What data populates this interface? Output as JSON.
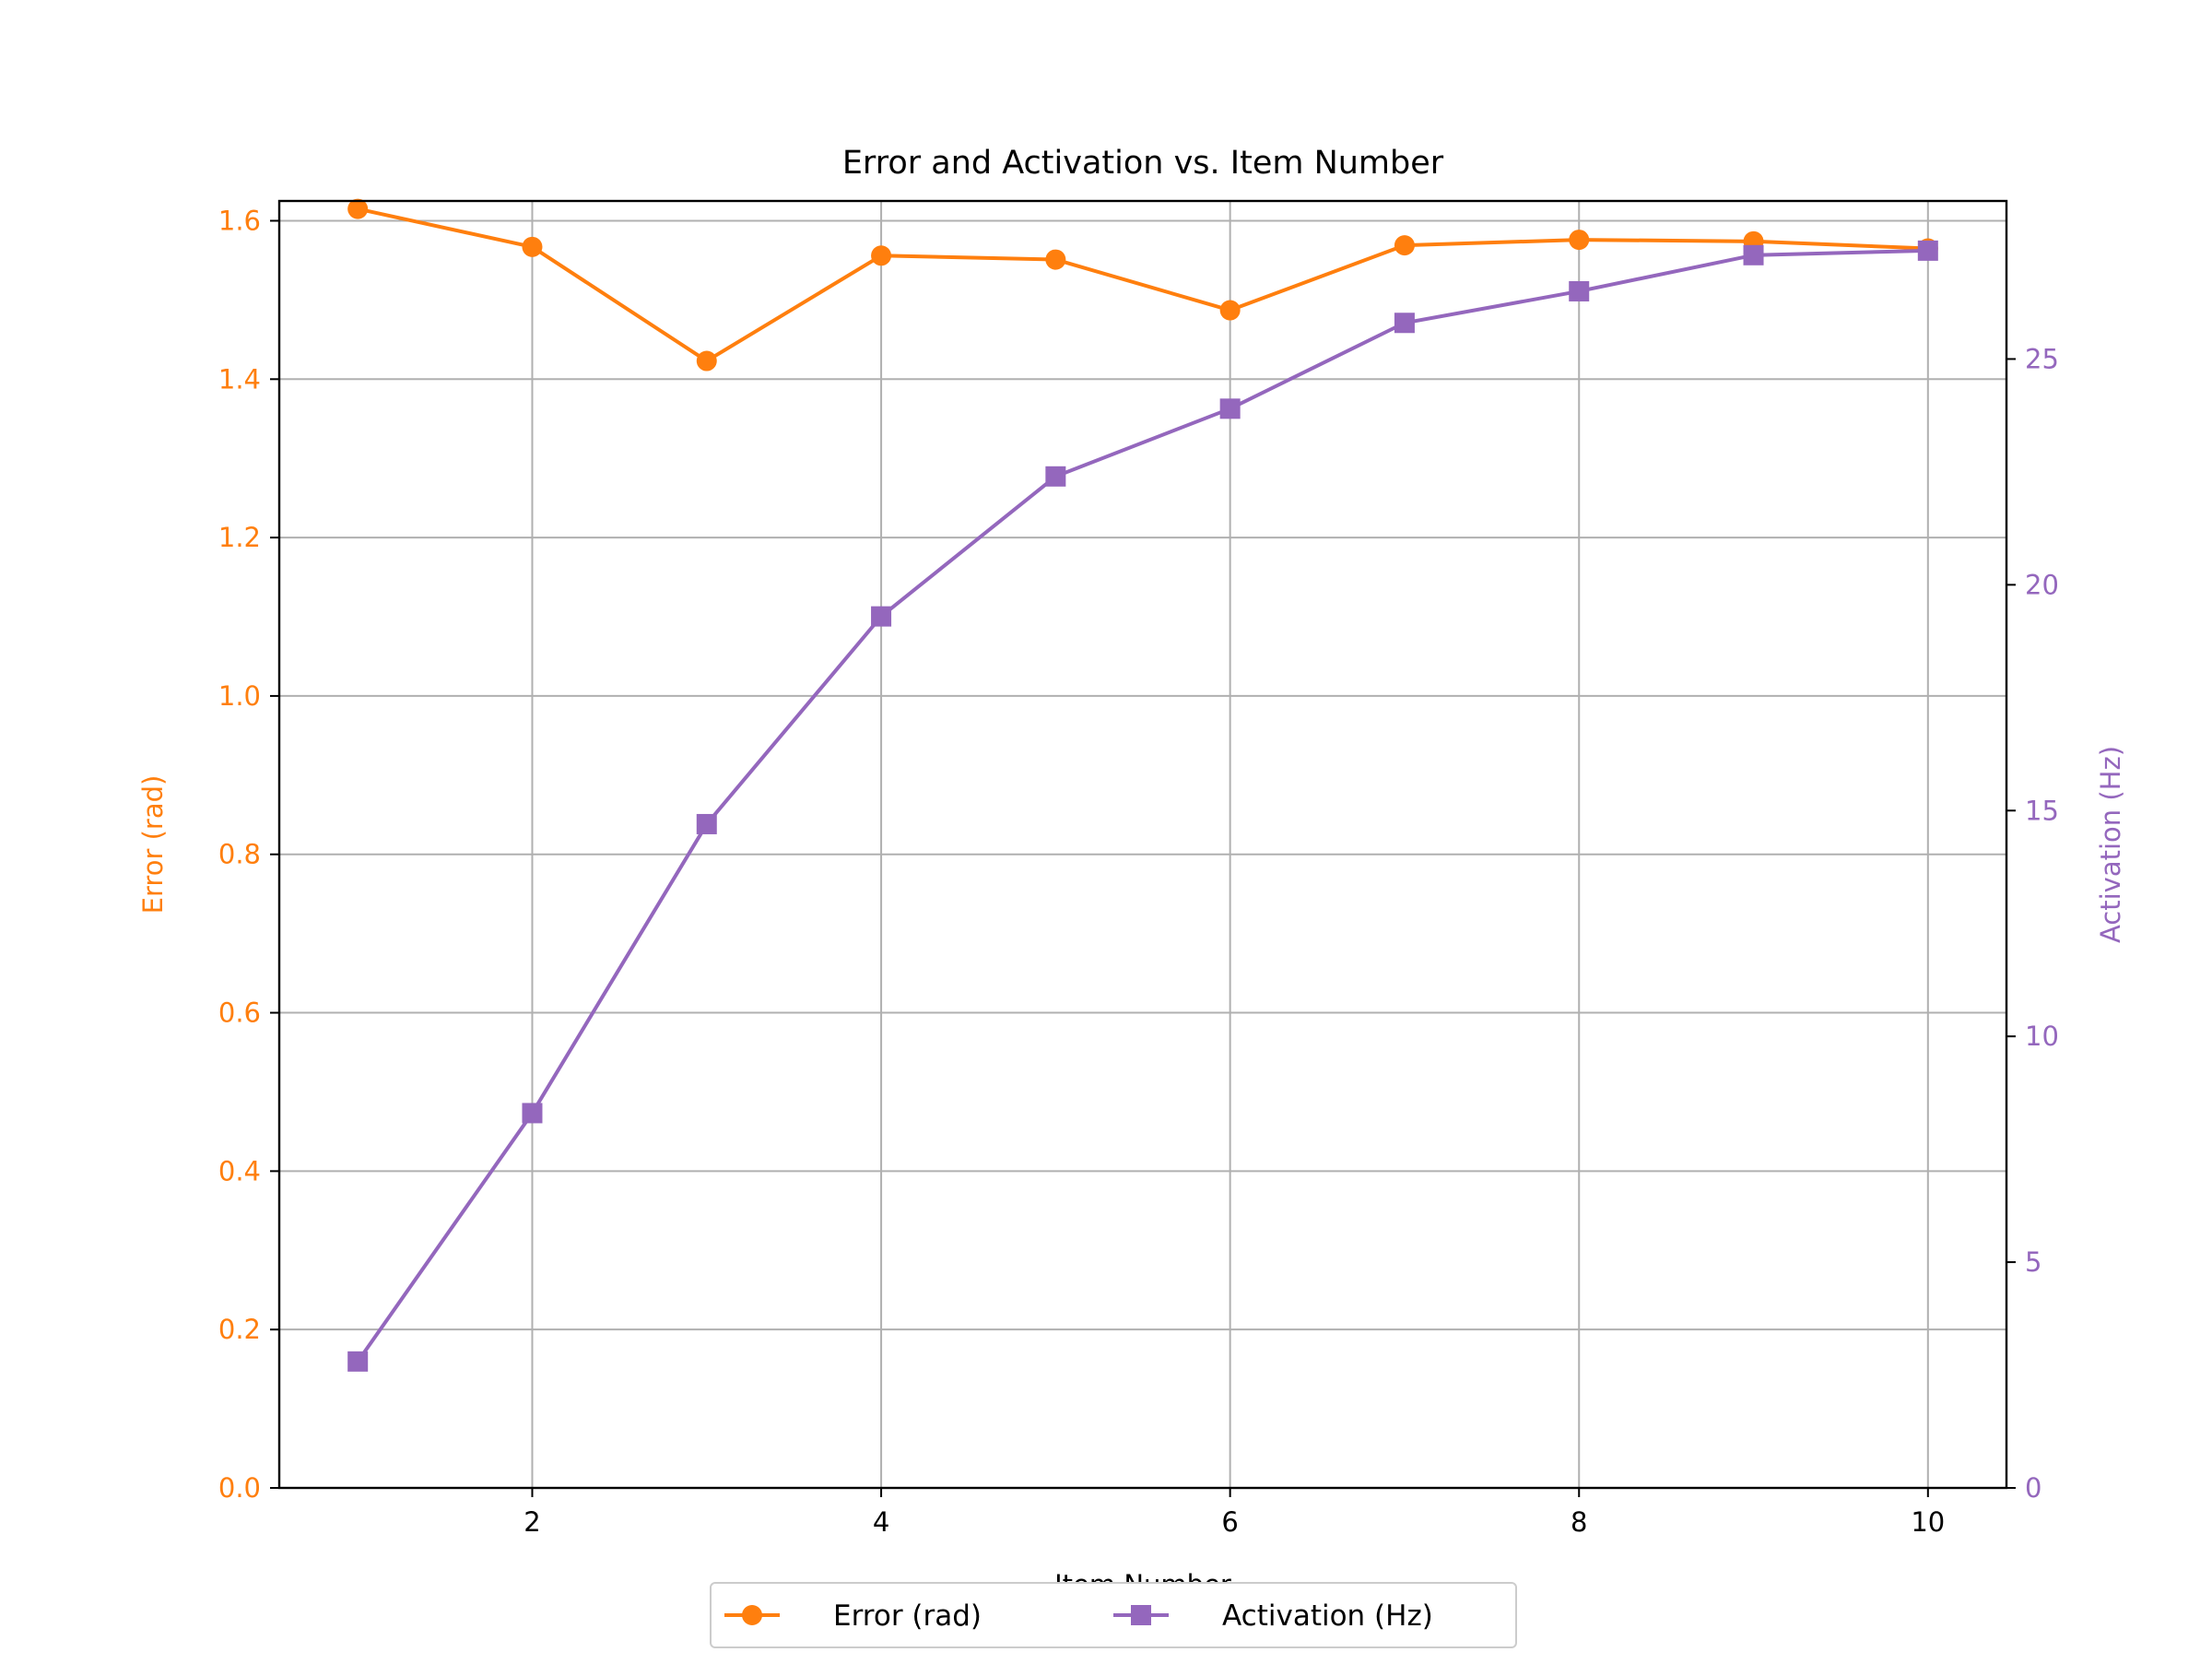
{
  "chart_data": {
    "type": "line",
    "title": "Error and Activation vs. Item Number",
    "xlabel": "Item Number",
    "ylabel_left": "Error (rad)",
    "ylabel_right": "Activation (Hz)",
    "x": [
      1,
      2,
      3,
      4,
      5,
      6,
      7,
      8,
      9,
      10
    ],
    "xlim": [
      0.55,
      10.45
    ],
    "x_ticks": [
      2,
      4,
      6,
      8,
      10
    ],
    "ylim_left": [
      0,
      1.625
    ],
    "y_ticks_left": [
      0.0,
      0.2,
      0.4,
      0.6,
      0.8,
      1.0,
      1.2,
      1.4,
      1.6
    ],
    "ylim_right": [
      0,
      28.5
    ],
    "y_ticks_right": [
      0,
      5,
      10,
      15,
      20,
      25
    ],
    "grid": true,
    "legend_placement": "bottom-center",
    "series": [
      {
        "name": "Error (rad)",
        "axis": "left",
        "color": "#ff7f0e",
        "marker": "circle",
        "values": [
          1.615,
          1.567,
          1.423,
          1.556,
          1.551,
          1.487,
          1.569,
          1.576,
          1.574,
          1.565
        ]
      },
      {
        "name": "Activation (Hz)",
        "axis": "right",
        "color": "#9467bd",
        "marker": "square",
        "values": [
          2.8,
          8.3,
          14.7,
          19.3,
          22.4,
          23.9,
          25.8,
          26.5,
          27.3,
          27.4
        ]
      }
    ]
  }
}
